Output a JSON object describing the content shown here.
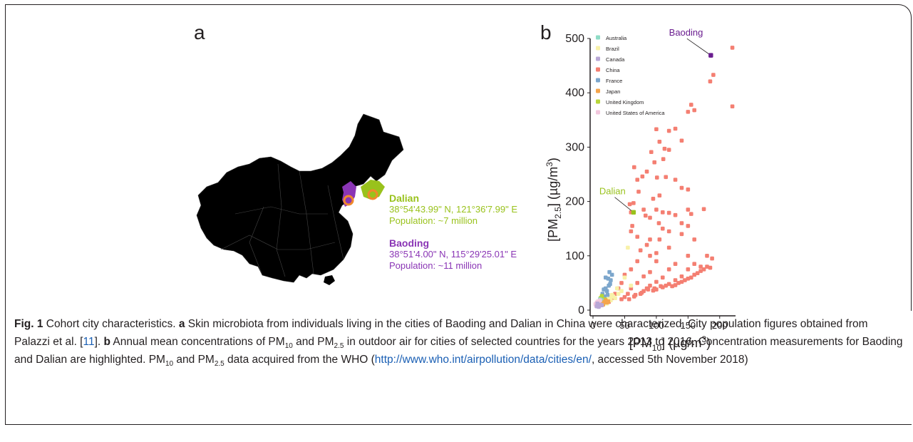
{
  "panel_a": {
    "label": "a",
    "dalian": {
      "name": "Dalian",
      "coords": "38°54'43.99\" N, 121°36'7.99\" E",
      "population": "Population: ~7 million",
      "color": "#99c21c"
    },
    "baoding": {
      "name": "Baoding",
      "coords": "38°51'4.00\" N, 115°29'25.01\" E",
      "population": "Population: ~11 million",
      "color": "#8a35b5"
    },
    "marker_color": "#f0892b",
    "map_icon": "china-map"
  },
  "panel_b": {
    "label": "b"
  },
  "chart_data": {
    "type": "scatter",
    "xlabel_main": "[PM",
    "xlabel_sub": "10",
    "xlabel_rest": "] (µg/m",
    "xlabel_sup": "3",
    "xlabel_end": ")",
    "ylabel_main": "[PM",
    "ylabel_sub": "2.5",
    "ylabel_rest": "] (µg/m",
    "ylabel_sup": "3",
    "ylabel_end": ")",
    "xlim": [
      0,
      225
    ],
    "ylim": [
      0,
      500
    ],
    "xticks": [
      0,
      50,
      100,
      150,
      200
    ],
    "yticks": [
      0,
      100,
      200,
      300,
      400,
      500
    ],
    "grid": false,
    "legend_position": "top-left",
    "series": [
      {
        "name": "Australia",
        "color": "#8fdcc6",
        "points": [
          [
            10,
            14
          ],
          [
            12,
            10
          ],
          [
            14,
            18
          ],
          [
            9,
            8
          ],
          [
            16,
            12
          ],
          [
            11,
            20
          ],
          [
            13,
            15
          ],
          [
            8,
            11
          ]
        ]
      },
      {
        "name": "Brazil",
        "color": "#f8f1a9",
        "points": [
          [
            20,
            15
          ],
          [
            25,
            20
          ],
          [
            30,
            28
          ],
          [
            35,
            22
          ],
          [
            40,
            30
          ],
          [
            28,
            18
          ],
          [
            45,
            35
          ],
          [
            50,
            60
          ],
          [
            22,
            12
          ],
          [
            55,
            115
          ],
          [
            32,
            25
          ],
          [
            38,
            40
          ],
          [
            27,
            24
          ],
          [
            60,
            45
          ]
        ]
      },
      {
        "name": "Canada",
        "color": "#b9a7d6",
        "points": [
          [
            6,
            7
          ],
          [
            8,
            9
          ],
          [
            10,
            8
          ],
          [
            12,
            10
          ],
          [
            7,
            12
          ],
          [
            9,
            6
          ],
          [
            14,
            9
          ]
        ]
      },
      {
        "name": "China",
        "color": "#f47f72",
        "points": [
          [
            220,
            483
          ],
          [
            190,
            433
          ],
          [
            185,
            421
          ],
          [
            220,
            375
          ],
          [
            155,
            378
          ],
          [
            160,
            368
          ],
          [
            150,
            365
          ],
          [
            130,
            334
          ],
          [
            100,
            333
          ],
          [
            120,
            330
          ],
          [
            140,
            312
          ],
          [
            105,
            310
          ],
          [
            113,
            297
          ],
          [
            92,
            291
          ],
          [
            120,
            295
          ],
          [
            111,
            278
          ],
          [
            97,
            272
          ],
          [
            65,
            263
          ],
          [
            85,
            255
          ],
          [
            78,
            246
          ],
          [
            101,
            244
          ],
          [
            130,
            240
          ],
          [
            115,
            245
          ],
          [
            70,
            240
          ],
          [
            72,
            218
          ],
          [
            95,
            205
          ],
          [
            140,
            225
          ],
          [
            150,
            222
          ],
          [
            105,
            211
          ],
          [
            64,
            197
          ],
          [
            58,
            195
          ],
          [
            80,
            185
          ],
          [
            60,
            180
          ],
          [
            90,
            170
          ],
          [
            150,
            185
          ],
          [
            175,
            186
          ],
          [
            155,
            177
          ],
          [
            120,
            179
          ],
          [
            110,
            180
          ],
          [
            100,
            185
          ],
          [
            83,
            174
          ],
          [
            130,
            175
          ],
          [
            140,
            160
          ],
          [
            104,
            160
          ],
          [
            62,
            155
          ],
          [
            110,
            150
          ],
          [
            150,
            155
          ],
          [
            60,
            145
          ],
          [
            120,
            145
          ],
          [
            140,
            140
          ],
          [
            70,
            135
          ],
          [
            90,
            130
          ],
          [
            105,
            130
          ],
          [
            160,
            130
          ],
          [
            85,
            120
          ],
          [
            120,
            115
          ],
          [
            100,
            105
          ],
          [
            75,
            110
          ],
          [
            150,
            100
          ],
          [
            90,
            100
          ],
          [
            180,
            100
          ],
          [
            188,
            95
          ],
          [
            70,
            90
          ],
          [
            100,
            90
          ],
          [
            130,
            85
          ],
          [
            160,
            85
          ],
          [
            170,
            80
          ],
          [
            60,
            75
          ],
          [
            90,
            70
          ],
          [
            120,
            75
          ],
          [
            150,
            75
          ],
          [
            180,
            80
          ],
          [
            50,
            65
          ],
          [
            80,
            62
          ],
          [
            110,
            60
          ],
          [
            140,
            62
          ],
          [
            170,
            72
          ],
          [
            45,
            50
          ],
          [
            70,
            50
          ],
          [
            100,
            52
          ],
          [
            130,
            55
          ],
          [
            160,
            65
          ],
          [
            40,
            40
          ],
          [
            60,
            40
          ],
          [
            90,
            45
          ],
          [
            120,
            48
          ],
          [
            150,
            58
          ],
          [
            35,
            30
          ],
          [
            55,
            30
          ],
          [
            80,
            35
          ],
          [
            110,
            42
          ],
          [
            140,
            52
          ],
          [
            30,
            22
          ],
          [
            50,
            24
          ],
          [
            75,
            30
          ],
          [
            100,
            38
          ],
          [
            130,
            46
          ],
          [
            25,
            15
          ],
          [
            45,
            20
          ],
          [
            65,
            25
          ],
          [
            95,
            36
          ],
          [
            125,
            44
          ],
          [
            155,
            60
          ],
          [
            165,
            68
          ],
          [
            175,
            75
          ],
          [
            185,
            78
          ],
          [
            85,
            40
          ],
          [
            115,
            45
          ],
          [
            135,
            50
          ],
          [
            145,
            55
          ],
          [
            57,
            20
          ],
          [
            67,
            28
          ],
          [
            77,
            32
          ],
          [
            87,
            38
          ],
          [
            97,
            40
          ],
          [
            107,
            44
          ]
        ]
      },
      {
        "name": "France",
        "color": "#7ca6cc",
        "points": [
          [
            12,
            18
          ],
          [
            18,
            25
          ],
          [
            22,
            35
          ],
          [
            25,
            45
          ],
          [
            28,
            55
          ],
          [
            30,
            65
          ],
          [
            20,
            40
          ],
          [
            15,
            30
          ],
          [
            24,
            58
          ],
          [
            26,
            70
          ],
          [
            20,
            60
          ],
          [
            27,
            48
          ],
          [
            17,
            38
          ],
          [
            23,
            28
          ]
        ]
      },
      {
        "name": "Japan",
        "color": "#f5a54c",
        "points": [
          [
            15,
            12
          ],
          [
            18,
            15
          ],
          [
            20,
            18
          ],
          [
            22,
            14
          ],
          [
            16,
            10
          ],
          [
            24,
            16
          ]
        ]
      },
      {
        "name": "United Kingdom",
        "color": "#b8d63a",
        "points": [
          [
            10,
            12
          ],
          [
            13,
            15
          ],
          [
            15,
            18
          ],
          [
            17,
            14
          ],
          [
            12,
            22
          ],
          [
            19,
            20
          ],
          [
            14,
            26
          ]
        ]
      },
      {
        "name": "United States of America",
        "color": "#f2c7dd",
        "points": [
          [
            5,
            8
          ],
          [
            7,
            10
          ],
          [
            9,
            12
          ],
          [
            6,
            14
          ],
          [
            8,
            16
          ],
          [
            10,
            9
          ],
          [
            11,
            18
          ],
          [
            4,
            11
          ]
        ]
      }
    ],
    "highlights": [
      {
        "name": "Baoding",
        "x": 186,
        "y": 469,
        "color": "#6a1d8f",
        "label_x": 120,
        "label_y": 505
      },
      {
        "name": "Dalian",
        "x": 64,
        "y": 180,
        "color": "#99c21c",
        "label_x": 10,
        "label_y": 213
      }
    ]
  },
  "caption": {
    "fig_label": "Fig. 1",
    "t1": " Cohort city characteristics. ",
    "a": "a",
    "t2": " Skin microbiota from individuals living in the cities of Baoding and Dalian in China were characterized. City population figures obtained from Palazzi et al. [",
    "ref": "11",
    "t3": "]. ",
    "b": "b",
    "t4": " Annual mean concentrations of PM",
    "s10": "10",
    "t5": " and PM",
    "s25": "2.5",
    "t6": " in outdoor air for cities of selected countries for the years 2013 to 2016. Concentration measurements for Baoding and Dalian are highlighted. PM",
    "s10b": "10",
    "t7": " and PM",
    "s25b": "2.5",
    "t8": " data acquired from the WHO (",
    "url": "http://www.who.int/airpollution/data/cities/en/",
    "t9": ", accessed 5th November 2018)"
  }
}
